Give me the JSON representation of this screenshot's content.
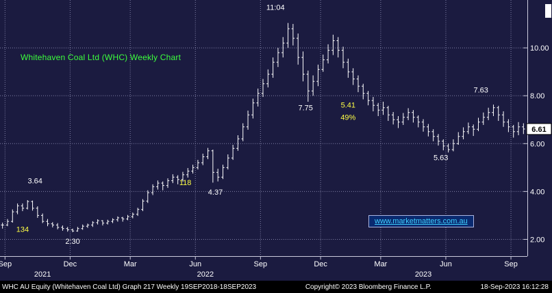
{
  "title": {
    "text": "Whitehaven Coal Ltd (WHC) Weekly Chart"
  },
  "watermark_link": {
    "text": "www.marketmatters.com.au"
  },
  "status_bar": {
    "left": "WHC AU Equity (Whitehaven Coal Ltd) Graph 217  Weekly 19SEP2018-18SEP2023",
    "center": "Copyright© 2023 Bloomberg Finance L.P.",
    "right": "18-Sep-2023 16:12:28"
  },
  "colors": {
    "background": "#1b1b40",
    "grid": "#9a9ac0",
    "axis_line": "#ccccdd",
    "bar": "#ffffff",
    "title_green": "#3cff3c",
    "annotation_white": "#ffffff",
    "annotation_yellow": "#ffff45",
    "axis_text": "#ffffff",
    "badge_bg": "#ffffff",
    "badge_text": "#000000",
    "link_cyan": "#3fd0ff",
    "status_bg": "#000000"
  },
  "chart_data": {
    "type": "bar",
    "subtype": "weekly-ohlc-bars",
    "title": "Whitehaven Coal Ltd (WHC) Weekly Chart",
    "ylabel": "Price (AUD)",
    "ylim": [
      1.3,
      12.0
    ],
    "grid": true,
    "y_ticks": [
      {
        "value": 2,
        "label": "2.00"
      },
      {
        "value": 4,
        "label": "4.00"
      },
      {
        "value": 6,
        "label": "6.00"
      },
      {
        "value": 8,
        "label": "8.00"
      },
      {
        "value": 10,
        "label": "10.00"
      }
    ],
    "x_months": [
      {
        "label": "Sep",
        "week": 1
      },
      {
        "label": "Dec",
        "week": 14
      },
      {
        "label": "Mar",
        "week": 26
      },
      {
        "label": "Jun",
        "week": 39
      },
      {
        "label": "Sep",
        "week": 52
      },
      {
        "label": "Dec",
        "week": 64
      },
      {
        "label": "Mar",
        "week": 76
      },
      {
        "label": "Jun",
        "week": 89
      },
      {
        "label": "Sep",
        "week": 102
      }
    ],
    "x_years": [
      {
        "label": "2021",
        "week": 8.5
      },
      {
        "label": "2022",
        "week": 41
      },
      {
        "label": "2023",
        "week": 84.5
      }
    ],
    "last_close": 6.61,
    "last_close_label": "6.61",
    "annotations": [
      {
        "text": "3.64",
        "week": 7,
        "price": 4.45,
        "color": "white"
      },
      {
        "text": "134",
        "week": 4.5,
        "price": 2.42,
        "color": "yellow"
      },
      {
        "text": "2:30",
        "week": 14.5,
        "price": 1.93,
        "color": "white"
      },
      {
        "text": "118",
        "week": 37,
        "price": 4.38,
        "color": "yellow"
      },
      {
        "text": "4.37",
        "week": 43,
        "price": 3.98,
        "color": "white"
      },
      {
        "text": "11:04",
        "week": 55,
        "price": 11.7,
        "color": "white"
      },
      {
        "text": "7.75",
        "week": 61,
        "price": 7.5,
        "color": "white"
      },
      {
        "text": "5.41",
        "week": 69.5,
        "price": 7.62,
        "color": "yellow"
      },
      {
        "text": "49%",
        "week": 69.5,
        "price": 7.1,
        "color": "yellow"
      },
      {
        "text": "5.63",
        "week": 88,
        "price": 5.42,
        "color": "white"
      },
      {
        "text": "7.63",
        "week": 96,
        "price": 8.25,
        "color": "white"
      }
    ],
    "bars_hlc": [
      [
        2.7,
        2.45,
        2.6
      ],
      [
        2.85,
        2.55,
        2.75
      ],
      [
        3.25,
        2.7,
        3.15
      ],
      [
        3.5,
        3.05,
        3.4
      ],
      [
        3.5,
        3.18,
        3.3
      ],
      [
        3.64,
        3.25,
        3.58
      ],
      [
        3.62,
        3.2,
        3.3
      ],
      [
        3.38,
        2.9,
        3.0
      ],
      [
        3.08,
        2.68,
        2.75
      ],
      [
        2.85,
        2.55,
        2.65
      ],
      [
        2.72,
        2.5,
        2.6
      ],
      [
        2.68,
        2.42,
        2.5
      ],
      [
        2.58,
        2.36,
        2.45
      ],
      [
        2.52,
        2.32,
        2.4
      ],
      [
        2.45,
        2.3,
        2.35
      ],
      [
        2.52,
        2.32,
        2.45
      ],
      [
        2.62,
        2.4,
        2.55
      ],
      [
        2.66,
        2.48,
        2.6
      ],
      [
        2.76,
        2.52,
        2.7
      ],
      [
        2.84,
        2.62,
        2.78
      ],
      [
        2.8,
        2.58,
        2.68
      ],
      [
        2.82,
        2.62,
        2.75
      ],
      [
        2.88,
        2.68,
        2.82
      ],
      [
        2.96,
        2.74,
        2.9
      ],
      [
        2.94,
        2.74,
        2.85
      ],
      [
        3.02,
        2.8,
        2.95
      ],
      [
        3.12,
        2.88,
        3.05
      ],
      [
        3.32,
        2.98,
        3.25
      ],
      [
        3.68,
        3.18,
        3.6
      ],
      [
        4.05,
        3.52,
        3.95
      ],
      [
        4.3,
        3.85,
        4.2
      ],
      [
        4.46,
        4.08,
        4.35
      ],
      [
        4.42,
        4.05,
        4.25
      ],
      [
        4.55,
        4.15,
        4.45
      ],
      [
        4.72,
        4.35,
        4.6
      ],
      [
        4.68,
        4.3,
        4.5
      ],
      [
        4.82,
        4.42,
        4.7
      ],
      [
        4.98,
        4.58,
        4.85
      ],
      [
        5.12,
        4.75,
        5.0
      ],
      [
        5.32,
        4.92,
        5.2
      ],
      [
        5.58,
        5.1,
        5.45
      ],
      [
        5.82,
        5.35,
        5.7
      ],
      [
        5.75,
        4.37,
        4.8
      ],
      [
        4.95,
        4.42,
        4.6
      ],
      [
        5.12,
        4.52,
        5.0
      ],
      [
        5.55,
        4.92,
        5.4
      ],
      [
        5.95,
        5.32,
        5.8
      ],
      [
        6.35,
        5.7,
        6.2
      ],
      [
        6.85,
        6.1,
        6.7
      ],
      [
        7.38,
        6.58,
        7.2
      ],
      [
        7.88,
        7.05,
        7.7
      ],
      [
        8.3,
        7.55,
        8.1
      ],
      [
        8.7,
        7.95,
        8.5
      ],
      [
        9.1,
        8.35,
        8.9
      ],
      [
        9.6,
        8.75,
        9.4
      ],
      [
        10.0,
        9.2,
        9.8
      ],
      [
        10.45,
        9.6,
        10.2
      ],
      [
        11.04,
        10.0,
        10.8
      ],
      [
        11.0,
        10.1,
        10.4
      ],
      [
        10.6,
        9.3,
        9.6
      ],
      [
        9.85,
        8.6,
        8.9
      ],
      [
        9.05,
        7.75,
        8.2
      ],
      [
        8.85,
        8.0,
        8.6
      ],
      [
        9.3,
        8.4,
        9.1
      ],
      [
        9.72,
        9.0,
        9.5
      ],
      [
        10.15,
        9.35,
        9.9
      ],
      [
        10.55,
        9.7,
        10.3
      ],
      [
        10.45,
        9.6,
        9.9
      ],
      [
        10.05,
        9.15,
        9.4
      ],
      [
        9.55,
        8.75,
        9.0
      ],
      [
        9.15,
        8.45,
        8.7
      ],
      [
        8.85,
        8.15,
        8.4
      ],
      [
        8.5,
        7.85,
        8.1
      ],
      [
        8.2,
        7.6,
        7.8
      ],
      [
        7.95,
        7.35,
        7.6
      ],
      [
        7.7,
        7.15,
        7.4
      ],
      [
        7.75,
        7.2,
        7.5
      ],
      [
        7.58,
        6.95,
        7.2
      ],
      [
        7.32,
        6.8,
        7.0
      ],
      [
        7.15,
        6.65,
        6.9
      ],
      [
        7.28,
        6.78,
        7.1
      ],
      [
        7.48,
        6.98,
        7.3
      ],
      [
        7.4,
        6.88,
        7.1
      ],
      [
        7.18,
        6.68,
        6.9
      ],
      [
        7.02,
        6.5,
        6.7
      ],
      [
        6.82,
        6.3,
        6.5
      ],
      [
        6.6,
        6.1,
        6.3
      ],
      [
        6.4,
        5.92,
        6.1
      ],
      [
        6.18,
        5.72,
        5.9
      ],
      [
        6.0,
        5.63,
        5.75
      ],
      [
        6.18,
        5.68,
        6.0
      ],
      [
        6.48,
        5.95,
        6.3
      ],
      [
        6.68,
        6.18,
        6.5
      ],
      [
        6.88,
        6.4,
        6.7
      ],
      [
        6.8,
        6.32,
        6.6
      ],
      [
        7.08,
        6.52,
        6.9
      ],
      [
        7.3,
        6.78,
        7.1
      ],
      [
        7.5,
        6.98,
        7.3
      ],
      [
        7.63,
        7.15,
        7.5
      ],
      [
        7.58,
        6.95,
        7.2
      ],
      [
        7.35,
        6.7,
        6.9
      ],
      [
        7.02,
        6.48,
        6.7
      ],
      [
        6.78,
        6.25,
        6.5
      ],
      [
        6.9,
        6.35,
        6.7
      ],
      [
        6.85,
        6.4,
        6.61
      ]
    ]
  }
}
